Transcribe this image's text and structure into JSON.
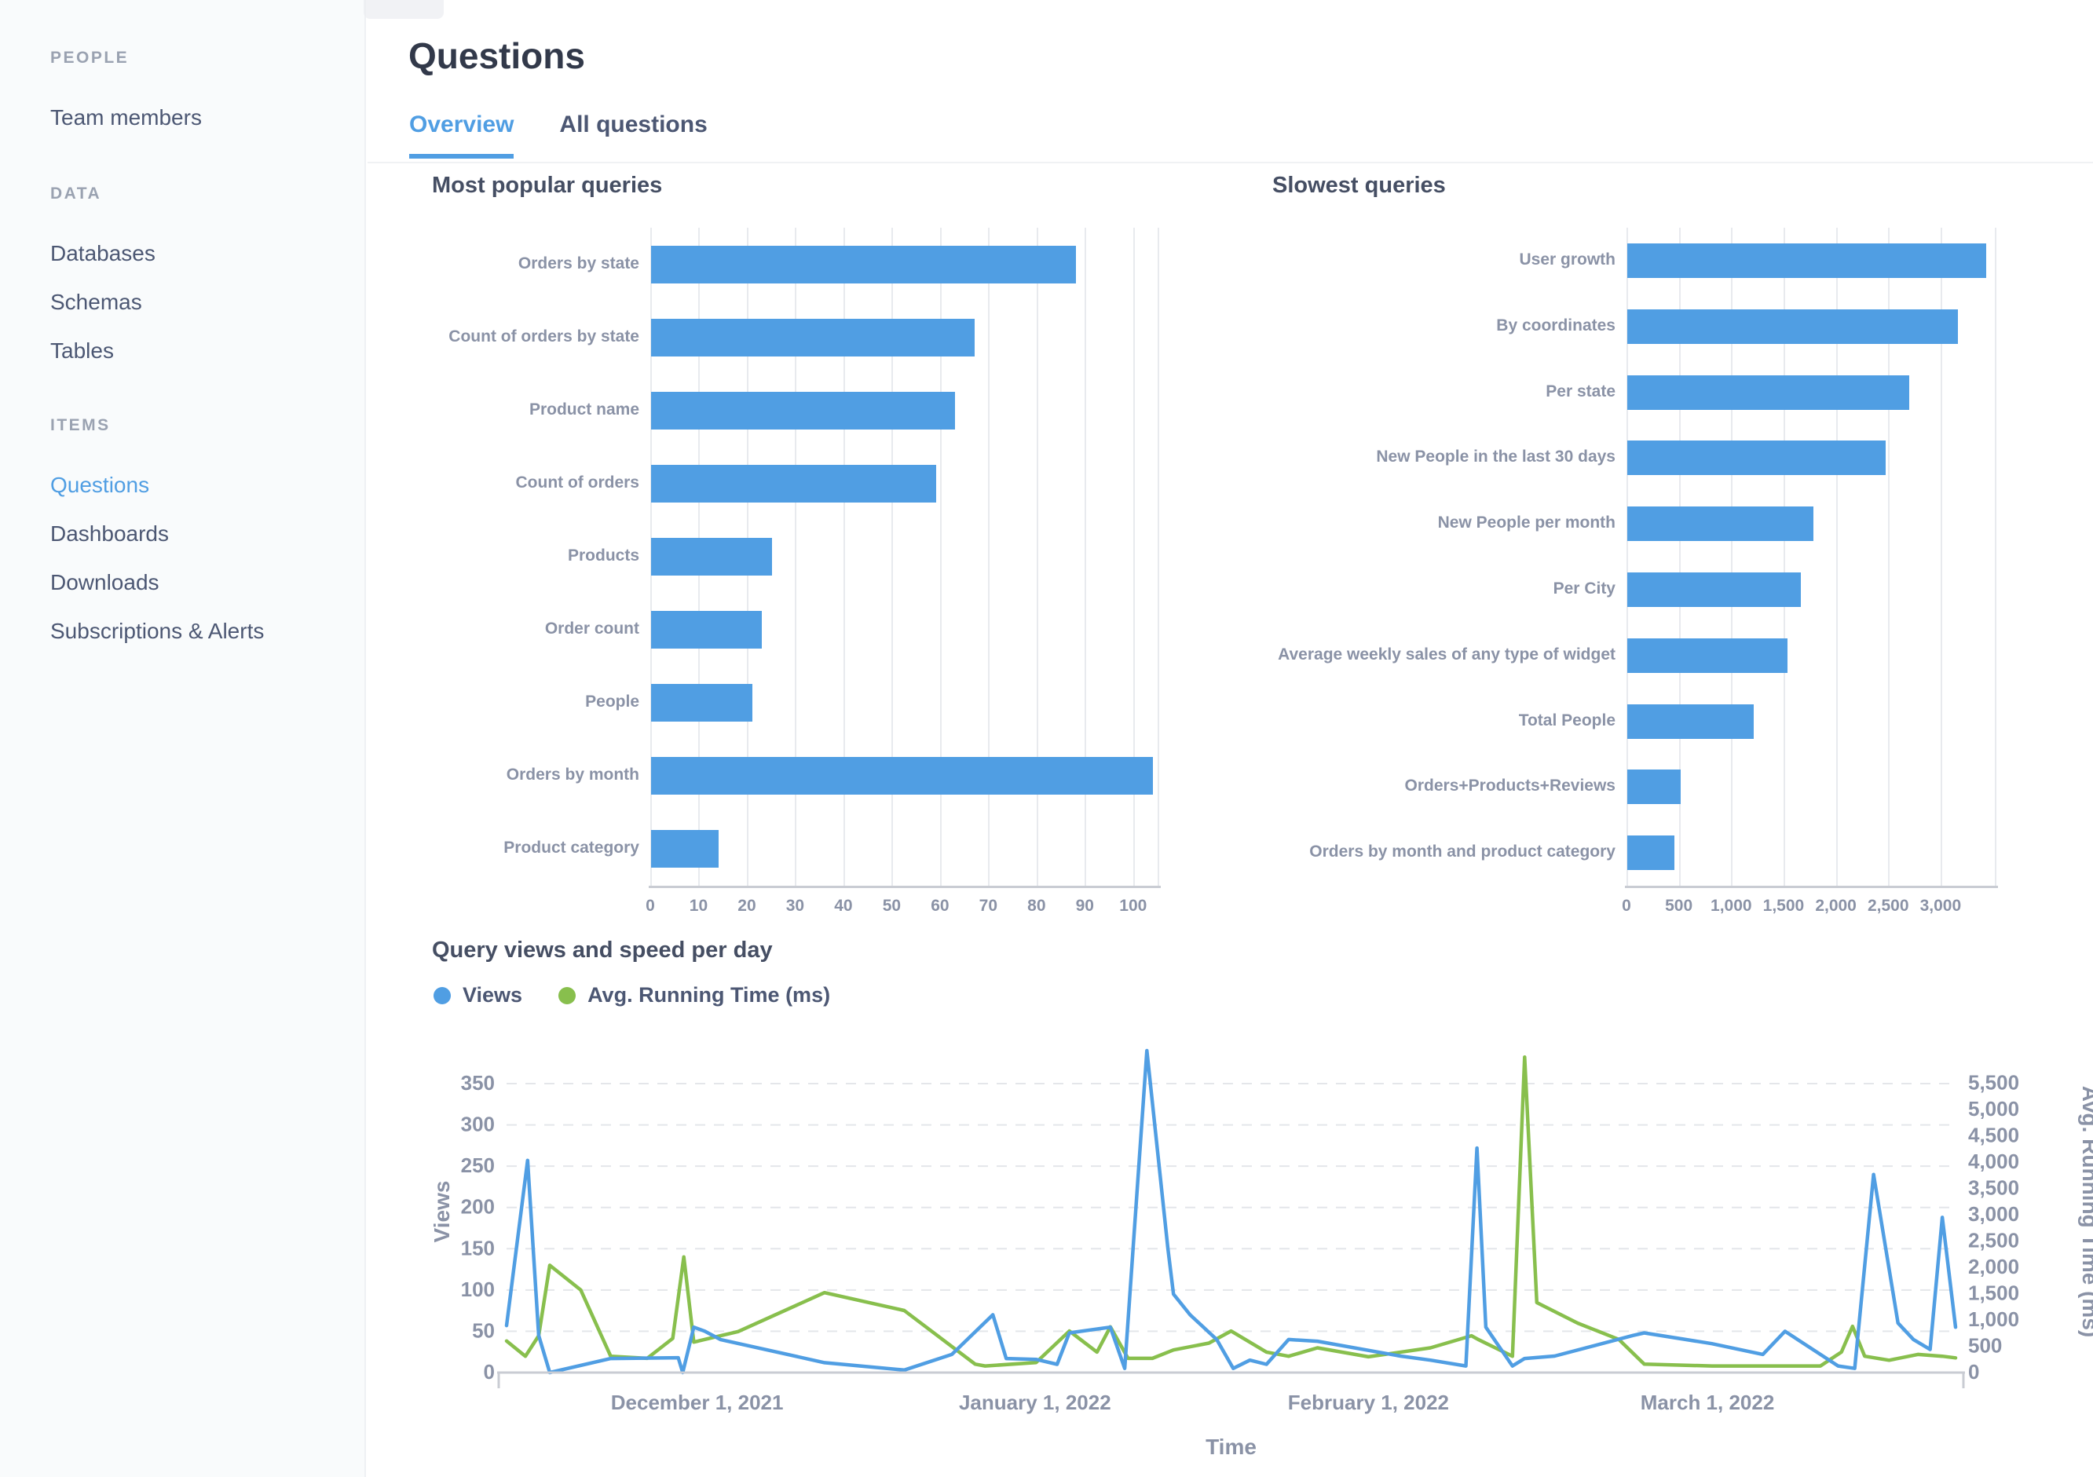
{
  "colors": {
    "accent": "#509ee3",
    "green": "#88bf4d",
    "title_dark": "#32394a",
    "text_medium": "#4c5773",
    "label_grey": "#8a92a6",
    "sidebar_bg": "#f9fbfc",
    "gridline": "#e8eaee",
    "axis_line": "#c9ccd3"
  },
  "sidebar": {
    "sections": [
      {
        "header": "PEOPLE",
        "items": [
          {
            "label": "Team members",
            "active": false
          }
        ]
      },
      {
        "header": "DATA",
        "items": [
          {
            "label": "Databases",
            "active": false
          },
          {
            "label": "Schemas",
            "active": false
          },
          {
            "label": "Tables",
            "active": false
          }
        ]
      },
      {
        "header": "ITEMS",
        "items": [
          {
            "label": "Questions",
            "active": true
          },
          {
            "label": "Dashboards",
            "active": false
          },
          {
            "label": "Downloads",
            "active": false
          },
          {
            "label": "Subscriptions & Alerts",
            "active": false
          }
        ]
      }
    ]
  },
  "header": {
    "title": "Questions",
    "tabs": [
      {
        "label": "Overview",
        "active": true
      },
      {
        "label": "All questions",
        "active": false
      }
    ]
  },
  "chart_data": [
    {
      "type": "bar",
      "orientation": "horizontal",
      "title": "Most popular queries",
      "categories": [
        "Orders by state",
        "Count of orders by state",
        "Product name",
        "Count of orders",
        "Products",
        "Order count",
        "People",
        "Orders by month",
        "Product category"
      ],
      "values": [
        88,
        67,
        63,
        59,
        25,
        23,
        21,
        104,
        14
      ],
      "bar_color": "#509ee3",
      "xlim": [
        0,
        105
      ],
      "xticks": [
        0,
        10,
        20,
        30,
        40,
        50,
        60,
        70,
        80,
        90,
        100
      ],
      "xtick_labels": [
        "0",
        "10",
        "20",
        "30",
        "40",
        "50",
        "60",
        "70",
        "80",
        "90",
        "100"
      ],
      "grid": true
    },
    {
      "type": "bar",
      "orientation": "horizontal",
      "title": "Slowest queries",
      "categories": [
        "User growth",
        "By coordinates",
        "Per state",
        "New People in the last 30 days",
        "New People per month",
        "Per City",
        "Average weekly sales of any type of widget",
        "Total People",
        "Orders+Products+Reviews",
        "Orders by month and product category"
      ],
      "values": [
        3430,
        3160,
        2690,
        2470,
        1780,
        1660,
        1530,
        1210,
        510,
        450
      ],
      "bar_color": "#509ee3",
      "xlim": [
        0,
        3520
      ],
      "xticks": [
        0,
        500,
        1000,
        1500,
        2000,
        2500,
        3000
      ],
      "xtick_labels": [
        "0",
        "500",
        "1,000",
        "1,500",
        "2,000",
        "2,500",
        "3,000"
      ],
      "grid": true
    },
    {
      "type": "line",
      "title": "Query views and speed per day",
      "xlabel": "Time",
      "x_tick_labels": [
        "December 1, 2021",
        "January 1, 2022",
        "February 1, 2022",
        "March 1, 2022"
      ],
      "x_tick_t": [
        17.2,
        47.7,
        77.8,
        108.4
      ],
      "t_range": [
        0,
        130.8
      ],
      "grid": "dashed-horizontal",
      "legend_position": "top-left",
      "left_axis": {
        "label": "Views",
        "ticks": [
          0,
          50,
          100,
          150,
          200,
          250,
          300,
          350
        ],
        "tick_labels": [
          "0",
          "50",
          "100",
          "150",
          "200",
          "250",
          "300",
          "350"
        ],
        "max": 390
      },
      "right_axis": {
        "label": "Avg. Running Time (ms)",
        "ticks": [
          0,
          500,
          1000,
          1500,
          2000,
          2500,
          3000,
          3500,
          4000,
          4500,
          5000,
          5500
        ],
        "tick_labels": [
          "0",
          "500",
          "1,000",
          "1,500",
          "2,000",
          "2,500",
          "3,000",
          "3,500",
          "4,000",
          "4,500",
          "5,000",
          "5,500"
        ],
        "max": 6123
      },
      "series": [
        {
          "name": "Views",
          "color": "#509ee3",
          "axis": "left",
          "points": [
            [
              0,
              57
            ],
            [
              1.9,
              257
            ],
            [
              2.9,
              45
            ],
            [
              3.9,
              0
            ],
            [
              9.4,
              17
            ],
            [
              15.5,
              18
            ],
            [
              15.9,
              0
            ],
            [
              16.9,
              55
            ],
            [
              17.9,
              50
            ],
            [
              19.3,
              40
            ],
            [
              28.7,
              12
            ],
            [
              35.9,
              3
            ],
            [
              40.2,
              22
            ],
            [
              43.9,
              70
            ],
            [
              45.1,
              17
            ],
            [
              47.8,
              16
            ],
            [
              49.7,
              10
            ],
            [
              50.8,
              48
            ],
            [
              54.5,
              55
            ],
            [
              55.8,
              5
            ],
            [
              57.8,
              390
            ],
            [
              59.7,
              150
            ],
            [
              60.2,
              95
            ],
            [
              61.7,
              70
            ],
            [
              64.1,
              40
            ],
            [
              65.6,
              5
            ],
            [
              67.1,
              15
            ],
            [
              68.6,
              10
            ],
            [
              70.6,
              40
            ],
            [
              73.2,
              38
            ],
            [
              80.7,
              20
            ],
            [
              83.4,
              15
            ],
            [
              86.6,
              8
            ],
            [
              87.6,
              272
            ],
            [
              88.4,
              55
            ],
            [
              90.8,
              8
            ],
            [
              91.9,
              17
            ],
            [
              94.6,
              20
            ],
            [
              101.7,
              45
            ],
            [
              102.7,
              48
            ],
            [
              108.8,
              35
            ],
            [
              113.4,
              22
            ],
            [
              115.4,
              50
            ],
            [
              120.2,
              8
            ],
            [
              121.7,
              5
            ],
            [
              123.4,
              240
            ],
            [
              125.6,
              60
            ],
            [
              127,
              40
            ],
            [
              128.5,
              28
            ],
            [
              129.6,
              188
            ],
            [
              130.8,
              55
            ]
          ]
        },
        {
          "name": "Avg. Running Time (ms)",
          "color": "#88bf4d",
          "axis": "right",
          "points": [
            [
              0,
              600
            ],
            [
              1.7,
              310
            ],
            [
              2.9,
              700
            ],
            [
              3.9,
              2040
            ],
            [
              6.7,
              1570
            ],
            [
              9.4,
              310
            ],
            [
              12.7,
              270
            ],
            [
              15,
              650
            ],
            [
              16,
              2200
            ],
            [
              16.9,
              580
            ],
            [
              20.9,
              780
            ],
            [
              28.7,
              1520
            ],
            [
              35.9,
              1180
            ],
            [
              42.3,
              160
            ],
            [
              43.2,
              125
            ],
            [
              47.8,
              190
            ],
            [
              50.8,
              790
            ],
            [
              53.3,
              390
            ],
            [
              54.5,
              870
            ],
            [
              56.1,
              270
            ],
            [
              58.3,
              270
            ],
            [
              60.2,
              430
            ],
            [
              63.4,
              560
            ],
            [
              65.4,
              790
            ],
            [
              68.6,
              390
            ],
            [
              70.6,
              310
            ],
            [
              73.2,
              470
            ],
            [
              77.8,
              300
            ],
            [
              83.4,
              470
            ],
            [
              87.1,
              700
            ],
            [
              87.7,
              630
            ],
            [
              90.8,
              310
            ],
            [
              91.9,
              6000
            ],
            [
              93,
              1330
            ],
            [
              96.7,
              940
            ],
            [
              100.4,
              630
            ],
            [
              102.7,
              160
            ],
            [
              108.8,
              125
            ],
            [
              118.6,
              125
            ],
            [
              120.5,
              390
            ],
            [
              121.5,
              880
            ],
            [
              122.6,
              310
            ],
            [
              124.8,
              235
            ],
            [
              127.4,
              345
            ],
            [
              129.6,
              310
            ],
            [
              130.8,
              280
            ]
          ]
        }
      ]
    }
  ]
}
